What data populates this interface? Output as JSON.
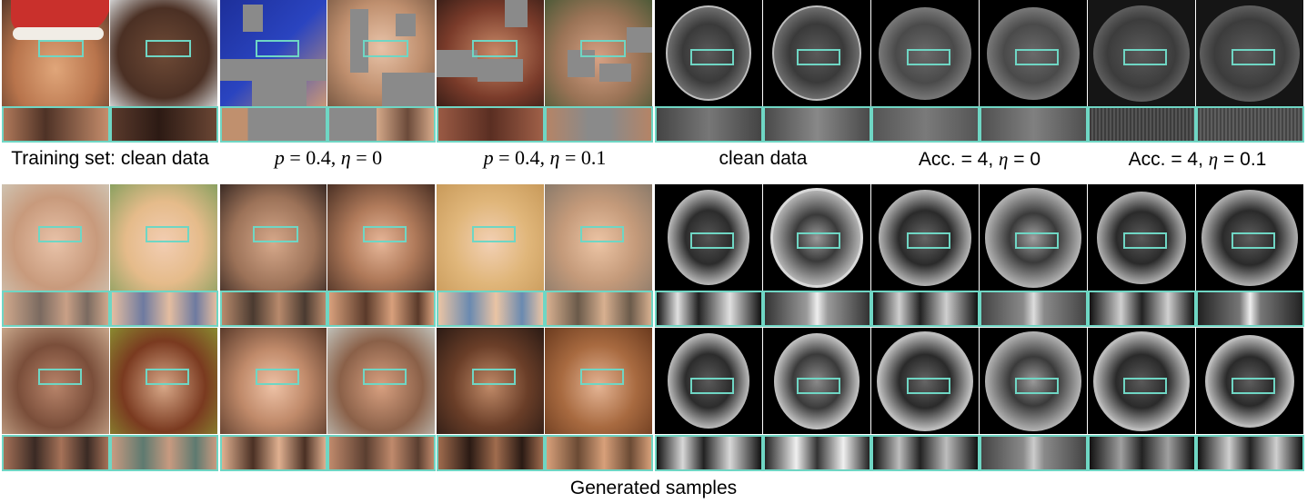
{
  "captions": {
    "col1": "Training set: clean data",
    "col2_p": "p",
    "col2_rest": " = 0.4, ",
    "col2_eta": "η",
    "col2_end": " = 0",
    "col3_p": "p",
    "col3_rest": " = 0.4, ",
    "col3_eta": "η",
    "col3_end": " = 0.1",
    "col4": "clean data",
    "col5_pre": "Acc. = 4, ",
    "col5_eta": "η",
    "col5_end": " = 0",
    "col6_pre": "Acc. = 4, ",
    "col6_eta": "η",
    "col6_end": " = 0.1",
    "bottom": "Generated samples"
  },
  "colors": {
    "roi_box": "#6fd6c4",
    "mask_gray": "#8a8a8a",
    "mri_background": "#000000"
  }
}
